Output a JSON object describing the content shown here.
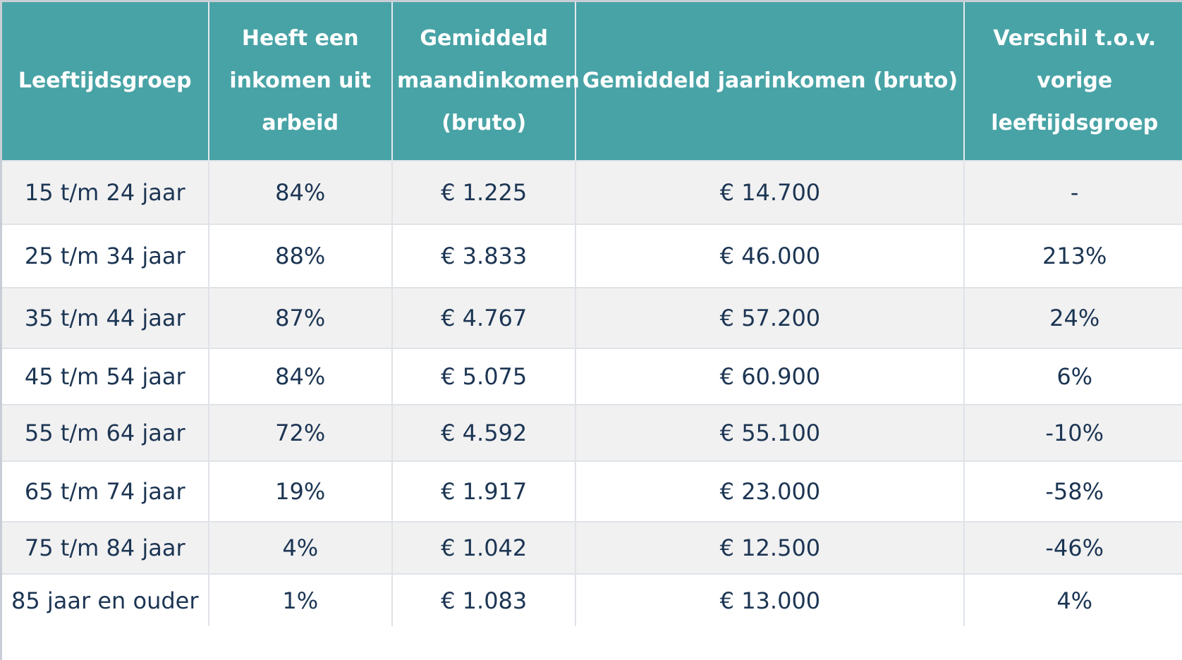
{
  "table": {
    "headers": [
      "Leeftijdsgroep",
      "Heeft een inkomen uit arbeid",
      "Gemiddeld maandinkomen (bruto)",
      "Gemiddeld jaarinkomen (bruto)",
      "Verschil t.o.v. vorige leeftijdsgroep"
    ],
    "rows": [
      [
        "15 t/m 24 jaar",
        "84%",
        "€ 1.225",
        "€ 14.700",
        "-"
      ],
      [
        "25 t/m 34 jaar",
        "88%",
        "€ 3.833",
        "€ 46.000",
        "213%"
      ],
      [
        "35 t/m 44 jaar",
        "87%",
        "€ 4.767",
        "€ 57.200",
        "24%"
      ],
      [
        "45 t/m 54 jaar",
        "84%",
        "€ 5.075",
        "€ 60.900",
        "6%"
      ],
      [
        "55 t/m 64 jaar",
        "72%",
        "€ 4.592",
        "€ 55.100",
        "-10%"
      ],
      [
        "65 t/m 74 jaar",
        "19%",
        "€ 1.917",
        "€ 23.000",
        "-58%"
      ],
      [
        "75 t/m 84 jaar",
        "4%",
        "€ 1.042",
        "€ 12.500",
        "-46%"
      ],
      [
        "85 jaar en ouder",
        "1%",
        "€ 1.083",
        "€ 13.000",
        "4%"
      ]
    ]
  },
  "colors": {
    "header_bg": "#48a3a6",
    "header_text": "#ffffff",
    "body_text": "#1c3553",
    "row_alt_bg": "#f1f1f2",
    "row_bg": "#ffffff"
  }
}
